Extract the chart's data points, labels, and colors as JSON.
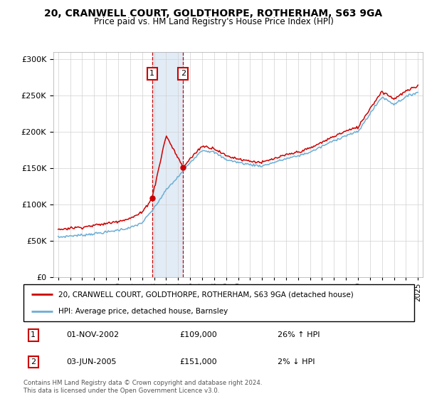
{
  "title": "20, CRANWELL COURT, GOLDTHORPE, ROTHERHAM, S63 9GA",
  "subtitle": "Price paid vs. HM Land Registry's House Price Index (HPI)",
  "legend_line1": "20, CRANWELL COURT, GOLDTHORPE, ROTHERHAM, S63 9GA (detached house)",
  "legend_line2": "HPI: Average price, detached house, Barnsley",
  "annotation1_date": "01-NOV-2002",
  "annotation1_price": "£109,000",
  "annotation1_hpi": "26% ↑ HPI",
  "annotation2_date": "03-JUN-2005",
  "annotation2_price": "£151,000",
  "annotation2_hpi": "2% ↓ HPI",
  "footnote": "Contains HM Land Registry data © Crown copyright and database right 2024.\nThis data is licensed under the Open Government Licence v3.0.",
  "sale1_year": 2002.83,
  "sale1_price": 109000,
  "sale2_year": 2005.42,
  "sale2_price": 151000,
  "hpi_color": "#6baed6",
  "property_color": "#cc0000",
  "background_shade_color": "#cfe0f0",
  "vline_color": "#cc0000",
  "ylim": [
    0,
    310000
  ],
  "xlim_start": 1994.6,
  "xlim_end": 2025.4
}
